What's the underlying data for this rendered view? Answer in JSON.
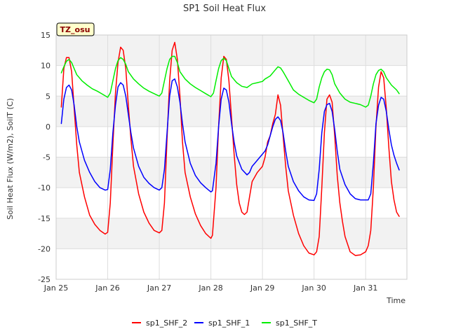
{
  "chart_data": {
    "type": "line",
    "title": "SP1 Soil Heat Flux",
    "xlabel": "Time",
    "ylabel": "Soil Heat Flux (W/m2), SoilT (C)",
    "badge": "TZ_osu",
    "ylim": [
      -25,
      15
    ],
    "yticks": [
      -25,
      -20,
      -15,
      -10,
      -5,
      0,
      5,
      10,
      15
    ],
    "xlim": [
      0,
      6.8
    ],
    "xticks": [
      0,
      1,
      2,
      3,
      4,
      5,
      6
    ],
    "xtick_labels": [
      "Jan 25",
      "Jan 26",
      "Jan 27",
      "Jan 28",
      "Jan 29",
      "Jan 30",
      "Jan 31"
    ],
    "grid": true,
    "legend_position": "bottom",
    "colors": {
      "sp1_SHF_2": "#ff0000",
      "sp1_SHF_1": "#0000ff",
      "sp1_SHF_T": "#00ee00"
    },
    "series": [
      {
        "name": "sp1_SHF_2",
        "points": [
          [
            0.1,
            3.2
          ],
          [
            0.15,
            9.5
          ],
          [
            0.2,
            11.3
          ],
          [
            0.25,
            11.3
          ],
          [
            0.3,
            9.0
          ],
          [
            0.35,
            3.0
          ],
          [
            0.4,
            -3.0
          ],
          [
            0.45,
            -7.5
          ],
          [
            0.55,
            -11.5
          ],
          [
            0.65,
            -14.5
          ],
          [
            0.75,
            -16.0
          ],
          [
            0.85,
            -17.0
          ],
          [
            0.95,
            -17.6
          ],
          [
            1.0,
            -17.3
          ],
          [
            1.05,
            -12.5
          ],
          [
            1.1,
            -3.0
          ],
          [
            1.15,
            5.5
          ],
          [
            1.2,
            10.5
          ],
          [
            1.25,
            13.0
          ],
          [
            1.3,
            12.5
          ],
          [
            1.35,
            9.5
          ],
          [
            1.4,
            3.5
          ],
          [
            1.45,
            -2.0
          ],
          [
            1.5,
            -6.5
          ],
          [
            1.6,
            -11.0
          ],
          [
            1.7,
            -14.0
          ],
          [
            1.8,
            -15.8
          ],
          [
            1.9,
            -17.0
          ],
          [
            2.0,
            -17.4
          ],
          [
            2.05,
            -17.0
          ],
          [
            2.1,
            -12.5
          ],
          [
            2.15,
            -2.0
          ],
          [
            2.2,
            7.5
          ],
          [
            2.25,
            12.5
          ],
          [
            2.3,
            13.8
          ],
          [
            2.35,
            11.0
          ],
          [
            2.4,
            5.0
          ],
          [
            2.45,
            -2.5
          ],
          [
            2.5,
            -7.5
          ],
          [
            2.6,
            -11.5
          ],
          [
            2.7,
            -14.3
          ],
          [
            2.8,
            -16.2
          ],
          [
            2.9,
            -17.5
          ],
          [
            3.0,
            -18.3
          ],
          [
            3.03,
            -17.8
          ],
          [
            3.1,
            -10.0
          ],
          [
            3.15,
            0.0
          ],
          [
            3.2,
            8.0
          ],
          [
            3.25,
            11.5
          ],
          [
            3.3,
            11.0
          ],
          [
            3.35,
            7.5
          ],
          [
            3.4,
            1.5
          ],
          [
            3.45,
            -4.5
          ],
          [
            3.5,
            -9.5
          ],
          [
            3.55,
            -12.5
          ],
          [
            3.6,
            -14.0
          ],
          [
            3.65,
            -14.4
          ],
          [
            3.7,
            -14.0
          ],
          [
            3.75,
            -11.5
          ],
          [
            3.8,
            -9.0
          ],
          [
            3.9,
            -7.5
          ],
          [
            4.0,
            -6.5
          ],
          [
            4.05,
            -5.0
          ],
          [
            4.1,
            -2.5
          ],
          [
            4.15,
            -1.5
          ],
          [
            4.2,
            0.5
          ],
          [
            4.25,
            2.0
          ],
          [
            4.3,
            5.2
          ],
          [
            4.35,
            3.5
          ],
          [
            4.4,
            -1.5
          ],
          [
            4.45,
            -6.5
          ],
          [
            4.5,
            -10.5
          ],
          [
            4.6,
            -14.5
          ],
          [
            4.7,
            -17.5
          ],
          [
            4.8,
            -19.5
          ],
          [
            4.9,
            -20.7
          ],
          [
            5.0,
            -21.0
          ],
          [
            5.05,
            -20.5
          ],
          [
            5.1,
            -18.0
          ],
          [
            5.15,
            -10.0
          ],
          [
            5.2,
            -1.0
          ],
          [
            5.25,
            4.5
          ],
          [
            5.3,
            5.2
          ],
          [
            5.35,
            4.0
          ],
          [
            5.4,
            -1.5
          ],
          [
            5.45,
            -8.0
          ],
          [
            5.5,
            -12.5
          ],
          [
            5.55,
            -15.5
          ],
          [
            5.6,
            -18.0
          ],
          [
            5.7,
            -20.5
          ],
          [
            5.8,
            -21.1
          ],
          [
            5.9,
            -21.0
          ],
          [
            6.0,
            -20.5
          ],
          [
            6.05,
            -19.5
          ],
          [
            6.1,
            -17.0
          ],
          [
            6.15,
            -10.0
          ],
          [
            6.2,
            0.0
          ],
          [
            6.25,
            6.5
          ],
          [
            6.3,
            9.0
          ],
          [
            6.35,
            8.0
          ],
          [
            6.4,
            3.0
          ],
          [
            6.45,
            -3.5
          ],
          [
            6.5,
            -9.0
          ],
          [
            6.55,
            -12.0
          ],
          [
            6.6,
            -14.0
          ],
          [
            6.65,
            -14.7
          ]
        ]
      },
      {
        "name": "sp1_SHF_1",
        "points": [
          [
            0.1,
            0.5
          ],
          [
            0.15,
            4.5
          ],
          [
            0.2,
            6.4
          ],
          [
            0.25,
            6.8
          ],
          [
            0.3,
            6.0
          ],
          [
            0.35,
            3.5
          ],
          [
            0.4,
            0.0
          ],
          [
            0.45,
            -2.5
          ],
          [
            0.55,
            -5.5
          ],
          [
            0.65,
            -7.5
          ],
          [
            0.75,
            -9.0
          ],
          [
            0.85,
            -10.0
          ],
          [
            0.95,
            -10.4
          ],
          [
            1.0,
            -10.3
          ],
          [
            1.05,
            -7.0
          ],
          [
            1.1,
            -1.0
          ],
          [
            1.15,
            3.5
          ],
          [
            1.2,
            6.5
          ],
          [
            1.25,
            7.2
          ],
          [
            1.3,
            6.8
          ],
          [
            1.35,
            5.0
          ],
          [
            1.4,
            2.0
          ],
          [
            1.45,
            -1.0
          ],
          [
            1.5,
            -3.5
          ],
          [
            1.6,
            -6.5
          ],
          [
            1.7,
            -8.3
          ],
          [
            1.8,
            -9.3
          ],
          [
            1.9,
            -10.0
          ],
          [
            2.0,
            -10.4
          ],
          [
            2.05,
            -10.0
          ],
          [
            2.1,
            -7.0
          ],
          [
            2.15,
            -1.0
          ],
          [
            2.2,
            5.0
          ],
          [
            2.25,
            7.5
          ],
          [
            2.3,
            7.8
          ],
          [
            2.35,
            6.5
          ],
          [
            2.4,
            4.0
          ],
          [
            2.45,
            0.5
          ],
          [
            2.5,
            -2.5
          ],
          [
            2.6,
            -6.0
          ],
          [
            2.7,
            -8.0
          ],
          [
            2.8,
            -9.2
          ],
          [
            2.9,
            -10.0
          ],
          [
            3.0,
            -10.7
          ],
          [
            3.03,
            -10.5
          ],
          [
            3.1,
            -6.0
          ],
          [
            3.15,
            0.0
          ],
          [
            3.2,
            4.5
          ],
          [
            3.25,
            6.3
          ],
          [
            3.3,
            6.0
          ],
          [
            3.35,
            4.0
          ],
          [
            3.4,
            0.5
          ],
          [
            3.45,
            -2.5
          ],
          [
            3.5,
            -4.8
          ],
          [
            3.6,
            -7.0
          ],
          [
            3.7,
            -7.9
          ],
          [
            3.75,
            -7.5
          ],
          [
            3.8,
            -6.5
          ],
          [
            3.9,
            -5.5
          ],
          [
            4.0,
            -4.5
          ],
          [
            4.05,
            -4.0
          ],
          [
            4.1,
            -3.0
          ],
          [
            4.15,
            -1.5
          ],
          [
            4.2,
            0.0
          ],
          [
            4.25,
            1.2
          ],
          [
            4.3,
            1.6
          ],
          [
            4.35,
            1.0
          ],
          [
            4.4,
            -1.0
          ],
          [
            4.45,
            -4.0
          ],
          [
            4.5,
            -6.5
          ],
          [
            4.6,
            -9.0
          ],
          [
            4.7,
            -10.5
          ],
          [
            4.8,
            -11.5
          ],
          [
            4.9,
            -12.0
          ],
          [
            5.0,
            -12.1
          ],
          [
            5.05,
            -11.0
          ],
          [
            5.1,
            -7.0
          ],
          [
            5.15,
            -1.0
          ],
          [
            5.2,
            2.5
          ],
          [
            5.25,
            3.6
          ],
          [
            5.3,
            3.8
          ],
          [
            5.35,
            2.5
          ],
          [
            5.4,
            -0.5
          ],
          [
            5.45,
            -4.0
          ],
          [
            5.5,
            -7.0
          ],
          [
            5.6,
            -9.5
          ],
          [
            5.7,
            -11.0
          ],
          [
            5.8,
            -11.8
          ],
          [
            5.9,
            -12.0
          ],
          [
            6.0,
            -12.0
          ],
          [
            6.05,
            -12.0
          ],
          [
            6.1,
            -11.0
          ],
          [
            6.15,
            -6.0
          ],
          [
            6.2,
            0.5
          ],
          [
            6.25,
            3.5
          ],
          [
            6.3,
            4.8
          ],
          [
            6.35,
            4.5
          ],
          [
            6.4,
            2.5
          ],
          [
            6.45,
            -0.5
          ],
          [
            6.5,
            -3.0
          ],
          [
            6.55,
            -4.7
          ],
          [
            6.6,
            -6.0
          ],
          [
            6.65,
            -7.1
          ]
        ]
      },
      {
        "name": "sp1_SHF_T",
        "points": [
          [
            0.1,
            8.8
          ],
          [
            0.15,
            9.8
          ],
          [
            0.2,
            10.7
          ],
          [
            0.25,
            11.0
          ],
          [
            0.3,
            10.5
          ],
          [
            0.35,
            9.5
          ],
          [
            0.4,
            8.5
          ],
          [
            0.5,
            7.5
          ],
          [
            0.6,
            6.8
          ],
          [
            0.7,
            6.2
          ],
          [
            0.8,
            5.8
          ],
          [
            0.9,
            5.3
          ],
          [
            1.0,
            4.8
          ],
          [
            1.05,
            5.5
          ],
          [
            1.1,
            7.5
          ],
          [
            1.15,
            9.5
          ],
          [
            1.2,
            10.8
          ],
          [
            1.25,
            11.3
          ],
          [
            1.3,
            11.0
          ],
          [
            1.35,
            10.2
          ],
          [
            1.4,
            9.0
          ],
          [
            1.5,
            7.8
          ],
          [
            1.6,
            7.0
          ],
          [
            1.7,
            6.3
          ],
          [
            1.8,
            5.8
          ],
          [
            1.9,
            5.4
          ],
          [
            2.0,
            5.0
          ],
          [
            2.05,
            5.5
          ],
          [
            2.1,
            7.5
          ],
          [
            2.15,
            9.5
          ],
          [
            2.2,
            11.0
          ],
          [
            2.25,
            11.5
          ],
          [
            2.3,
            11.5
          ],
          [
            2.35,
            10.5
          ],
          [
            2.4,
            9.0
          ],
          [
            2.5,
            7.8
          ],
          [
            2.6,
            7.0
          ],
          [
            2.7,
            6.4
          ],
          [
            2.8,
            5.9
          ],
          [
            2.9,
            5.4
          ],
          [
            3.0,
            4.9
          ],
          [
            3.05,
            5.5
          ],
          [
            3.1,
            7.5
          ],
          [
            3.15,
            9.5
          ],
          [
            3.2,
            10.8
          ],
          [
            3.25,
            11.2
          ],
          [
            3.3,
            10.8
          ],
          [
            3.35,
            9.5
          ],
          [
            3.4,
            8.2
          ],
          [
            3.5,
            7.2
          ],
          [
            3.6,
            6.6
          ],
          [
            3.7,
            6.4
          ],
          [
            3.8,
            7.0
          ],
          [
            3.9,
            7.2
          ],
          [
            4.0,
            7.4
          ],
          [
            4.05,
            7.8
          ],
          [
            4.15,
            8.3
          ],
          [
            4.25,
            9.3
          ],
          [
            4.3,
            9.8
          ],
          [
            4.35,
            9.6
          ],
          [
            4.4,
            9.0
          ],
          [
            4.5,
            7.5
          ],
          [
            4.6,
            6.0
          ],
          [
            4.7,
            5.3
          ],
          [
            4.8,
            4.8
          ],
          [
            4.9,
            4.3
          ],
          [
            5.0,
            3.9
          ],
          [
            5.05,
            4.5
          ],
          [
            5.1,
            6.5
          ],
          [
            5.15,
            8.0
          ],
          [
            5.2,
            9.0
          ],
          [
            5.25,
            9.4
          ],
          [
            5.3,
            9.3
          ],
          [
            5.35,
            8.5
          ],
          [
            5.4,
            7.0
          ],
          [
            5.5,
            5.5
          ],
          [
            5.6,
            4.5
          ],
          [
            5.7,
            4.0
          ],
          [
            5.8,
            3.8
          ],
          [
            5.9,
            3.6
          ],
          [
            6.0,
            3.2
          ],
          [
            6.05,
            3.5
          ],
          [
            6.1,
            5.0
          ],
          [
            6.15,
            7.0
          ],
          [
            6.2,
            8.5
          ],
          [
            6.25,
            9.2
          ],
          [
            6.3,
            9.4
          ],
          [
            6.35,
            9.0
          ],
          [
            6.4,
            8.0
          ],
          [
            6.5,
            6.8
          ],
          [
            6.6,
            6.0
          ],
          [
            6.65,
            5.4
          ]
        ]
      }
    ]
  }
}
